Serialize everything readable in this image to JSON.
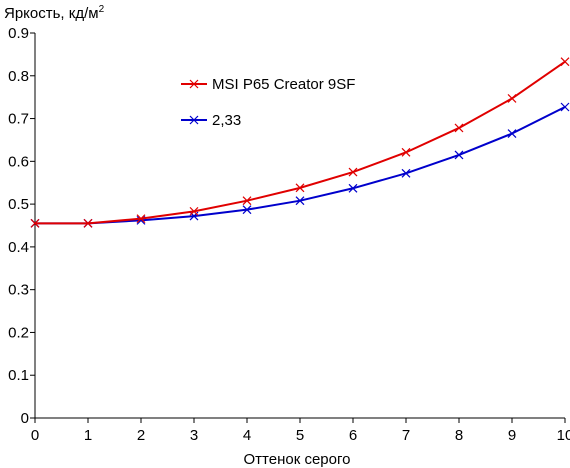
{
  "chart_data": {
    "type": "line",
    "ylabel": "Яркость, кд/м",
    "ylabel_sup": "2",
    "xlabel": "Оттенок серого",
    "xlim": [
      0,
      10
    ],
    "ylim": [
      0,
      0.9
    ],
    "x_ticks": [
      0,
      1,
      2,
      3,
      4,
      5,
      6,
      7,
      8,
      9,
      10
    ],
    "y_ticks": [
      "0",
      "0.1",
      "0.2",
      "0.3",
      "0.4",
      "0.5",
      "0.6",
      "0.7",
      "0.8",
      "0.9"
    ],
    "grid": false,
    "legend_position": "top-center",
    "series": [
      {
        "name": "MSI P65 Creator 9SF",
        "color": "#e00000",
        "marker": "x",
        "x": [
          0,
          1,
          2,
          3,
          4,
          5,
          6,
          7,
          8,
          9,
          10
        ],
        "y": [
          0.455,
          0.455,
          0.466,
          0.483,
          0.508,
          0.538,
          0.575,
          0.621,
          0.678,
          0.747,
          0.833
        ]
      },
      {
        "name": "2,33",
        "color": "#0000cc",
        "marker": "x",
        "x": [
          0,
          1,
          2,
          3,
          4,
          5,
          6,
          7,
          8,
          9,
          10
        ],
        "y": [
          0.455,
          0.455,
          0.462,
          0.472,
          0.487,
          0.508,
          0.537,
          0.572,
          0.615,
          0.665,
          0.727
        ]
      }
    ]
  }
}
